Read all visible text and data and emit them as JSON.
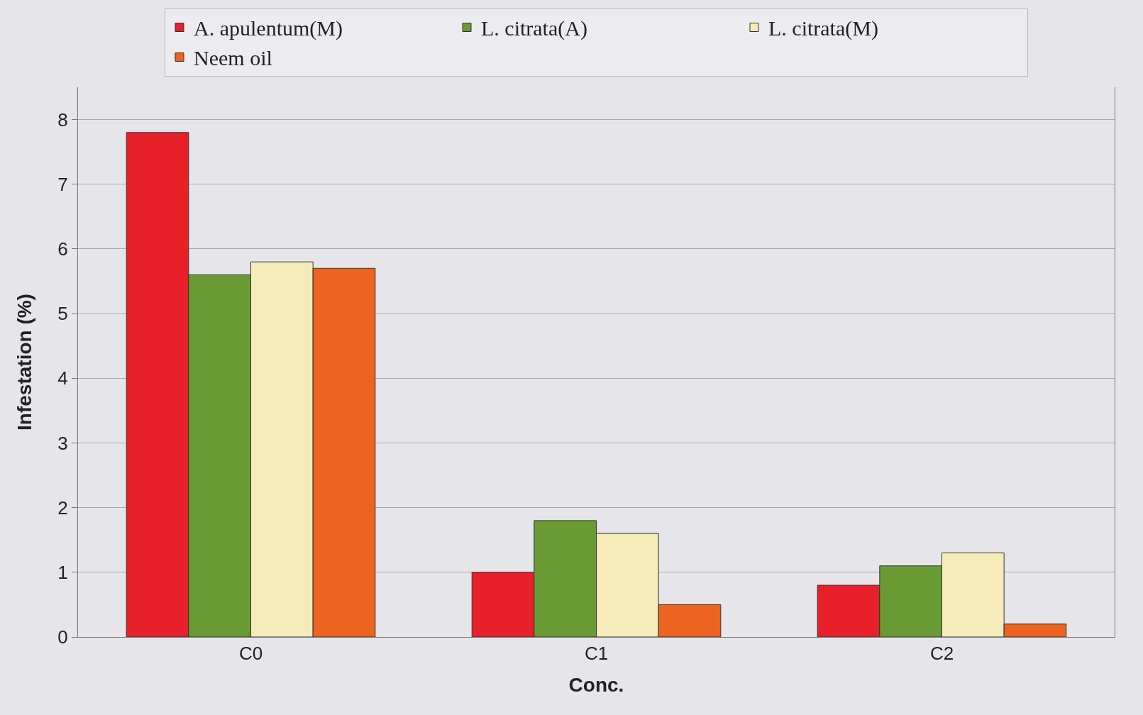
{
  "chart_data": {
    "type": "bar",
    "xlabel": "Conc.",
    "ylabel": "Infestation (%)",
    "categories": [
      "C0",
      "C1",
      "C2"
    ],
    "series": [
      {
        "name": "A. apulentum(M)",
        "color": "#e8202a",
        "values": [
          7.8,
          1.0,
          0.8
        ]
      },
      {
        "name": "L. citrata(A)",
        "color": "#6a9a34",
        "values": [
          5.6,
          1.8,
          1.1
        ]
      },
      {
        "name": "L. citrata(M)",
        "color": "#f5ebb8",
        "values": [
          5.8,
          1.6,
          1.3
        ]
      },
      {
        "name": "Neem oil",
        "color": "#ec6420",
        "values": [
          5.7,
          0.5,
          0.2
        ]
      }
    ],
    "ylim": [
      0,
      8.5
    ],
    "yticks": [
      0,
      1,
      2,
      3,
      4,
      5,
      6,
      7,
      8
    ],
    "grid": "y",
    "legend": "top"
  }
}
